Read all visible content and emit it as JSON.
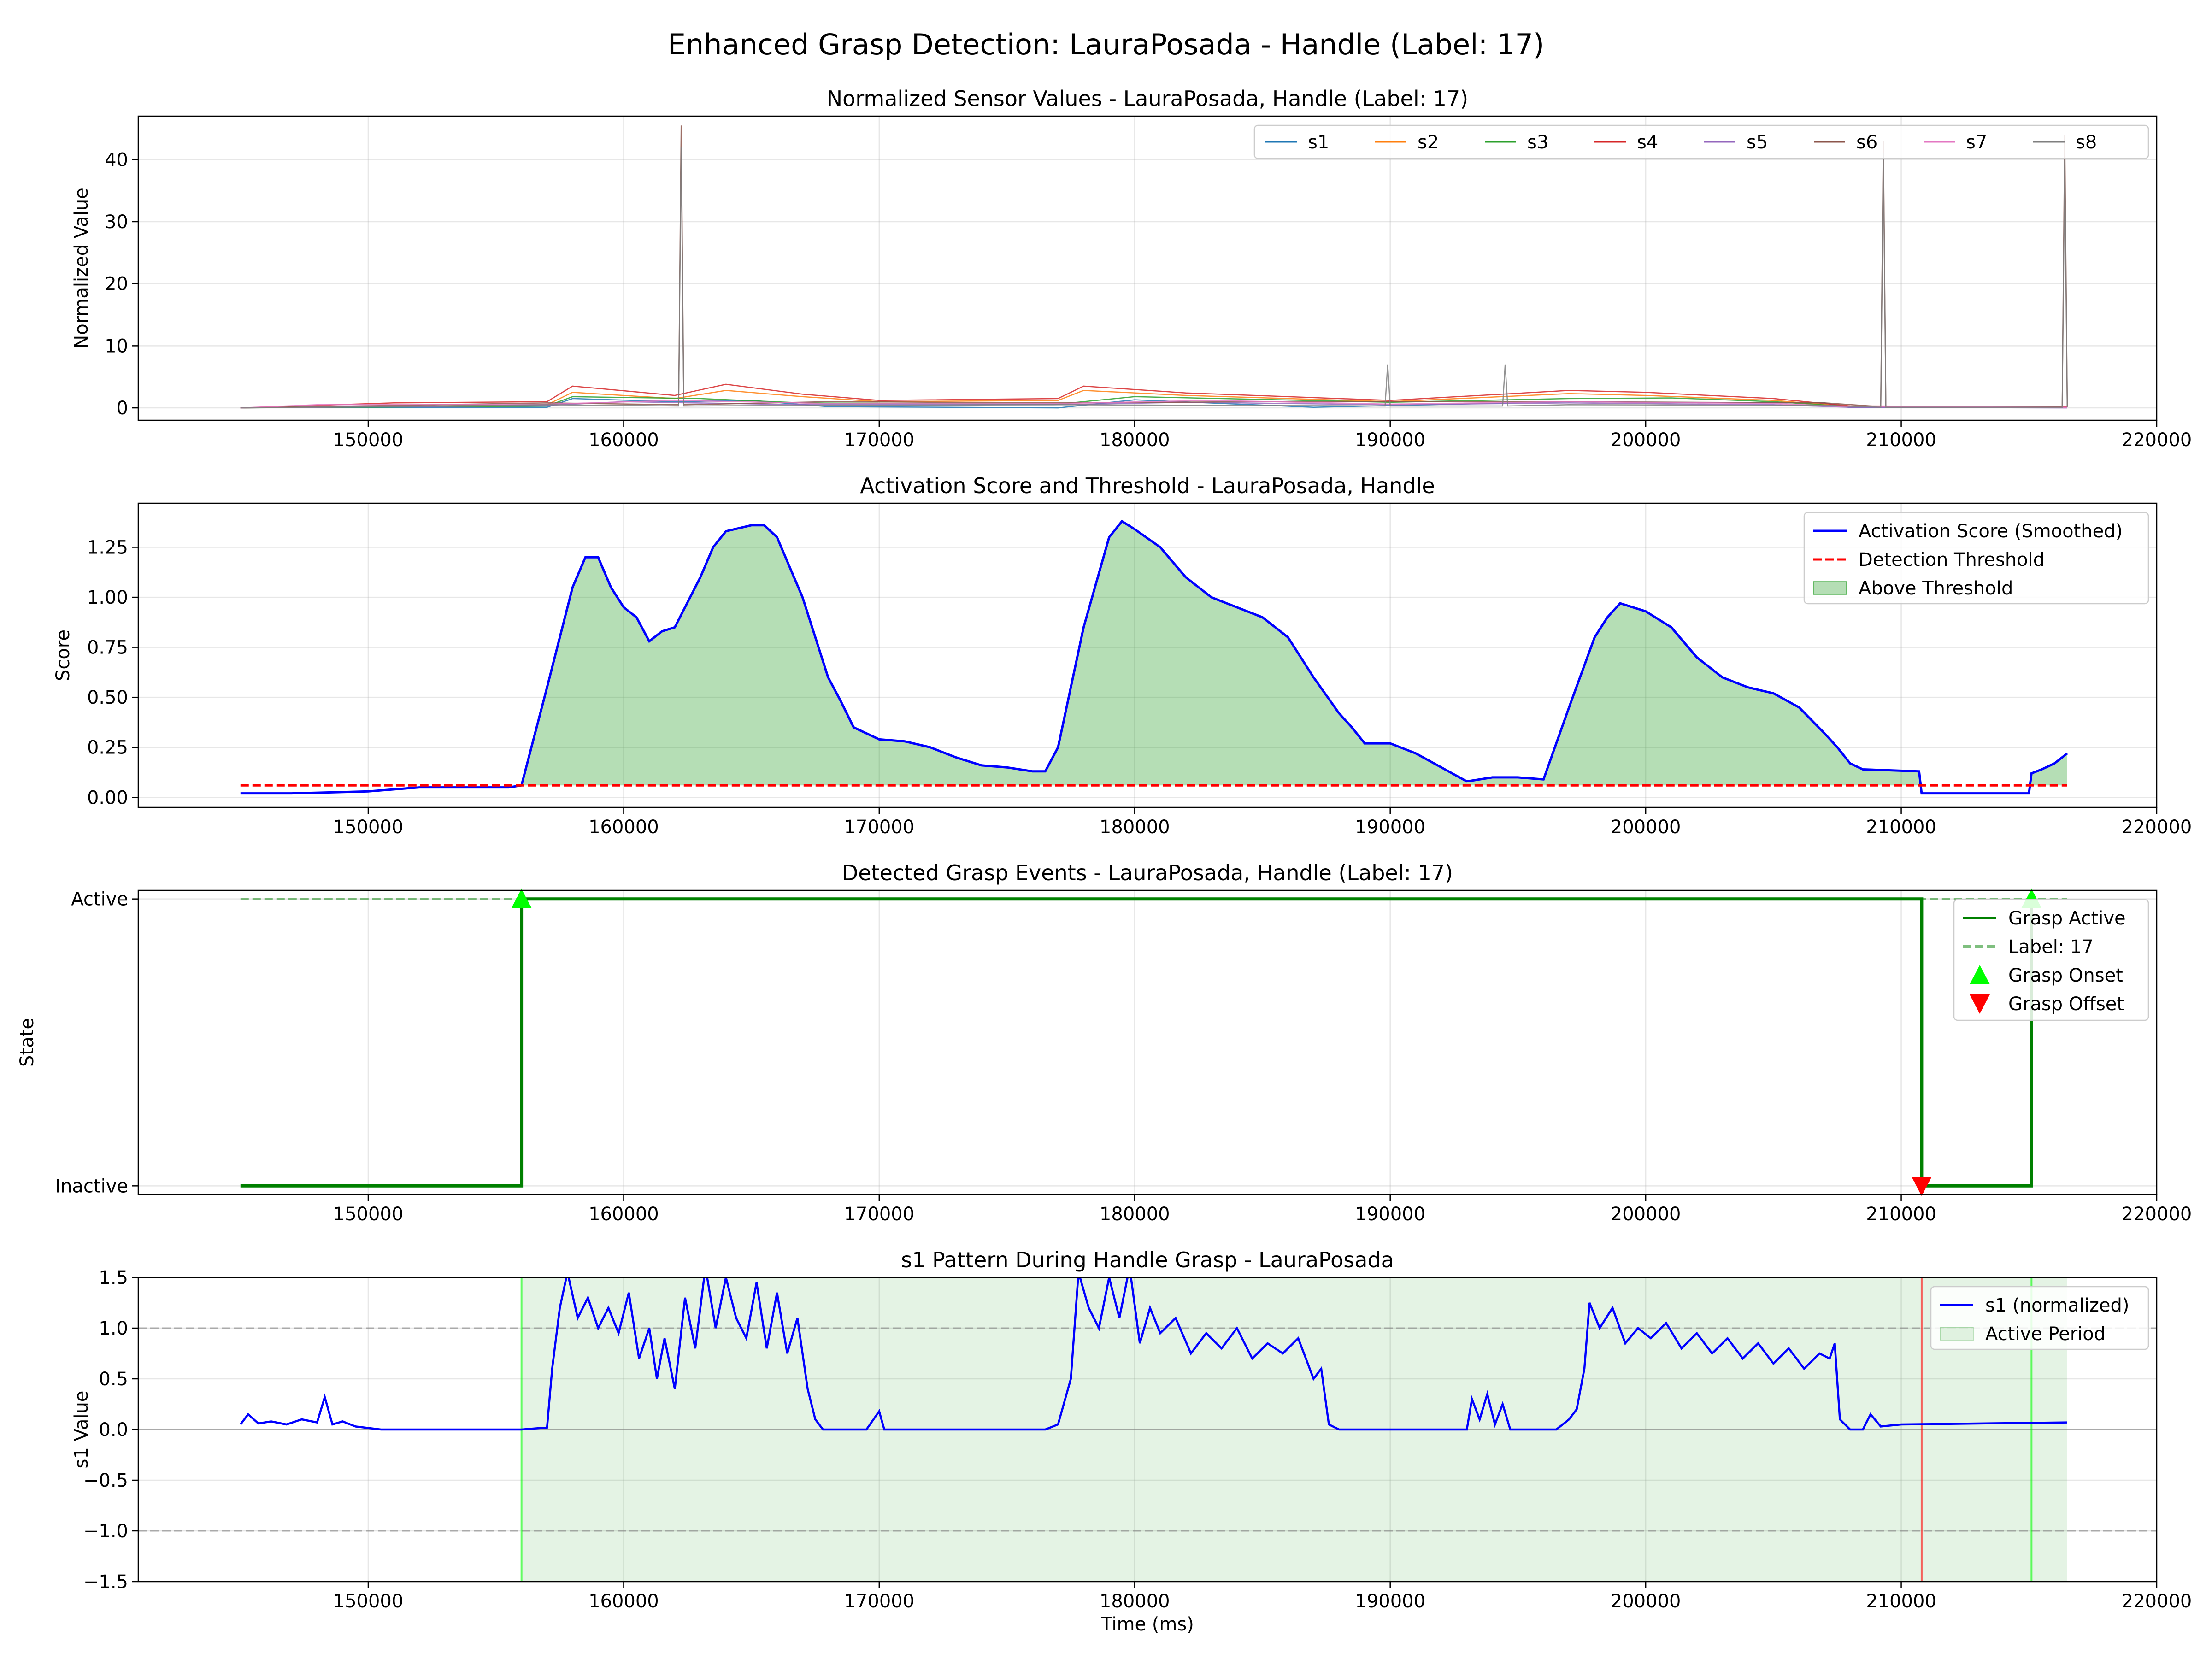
{
  "figure": {
    "title": "Enhanced Grasp Detection: LauraPosada - Handle (Label: 17)"
  },
  "colors": {
    "s1": "#1f77b4",
    "s2": "#ff7f0e",
    "s3": "#2ca02c",
    "s4": "#d62728",
    "s5": "#9467bd",
    "s6": "#8c564b",
    "s7": "#e377c2",
    "s8": "#7f7f7f",
    "score": "#0000ff",
    "threshold": "#ff0000",
    "fill": "#2ca02c",
    "grasp": "#008000",
    "onset": "#00ff00",
    "offset": "#ff0000"
  },
  "chart_data": [
    {
      "type": "line",
      "title": "Normalized Sensor Values - LauraPosada, Handle (Label: 17)",
      "xlabel": "",
      "ylabel": "Normalized Value",
      "xlim": [
        141000,
        220000
      ],
      "ylim": [
        -2,
        47
      ],
      "xticks": [
        150000,
        160000,
        170000,
        180000,
        190000,
        200000,
        210000,
        220000
      ],
      "xtick_labels": [
        "150000",
        "160000",
        "170000",
        "180000",
        "190000",
        "200000",
        "210000",
        "220000"
      ],
      "yticks": [
        0,
        10,
        20,
        30,
        40
      ],
      "ytick_labels": [
        "0",
        "10",
        "20",
        "30",
        "40"
      ],
      "grid": true,
      "legend": "top-right",
      "series": [
        {
          "name": "s1",
          "colorKey": "s1",
          "x": [
            145000,
            157000,
            158000,
            162000,
            165000,
            168000,
            177000,
            180000,
            187000,
            197000,
            200000,
            207000,
            208000,
            216500
          ],
          "y": [
            0.05,
            0.1,
            1.5,
            1.0,
            1.2,
            0.2,
            0.0,
            1.3,
            0.1,
            1.0,
            0.9,
            0.8,
            0.05,
            0.05
          ]
        },
        {
          "name": "s2",
          "colorKey": "s2",
          "x": [
            145000,
            157000,
            158000,
            162000,
            164000,
            167000,
            170000,
            177000,
            178000,
            182000,
            190000,
            197000,
            200000,
            205000,
            208000,
            216500
          ],
          "y": [
            0.0,
            0.5,
            2.5,
            1.5,
            2.8,
            1.8,
            1.0,
            1.2,
            2.8,
            2.0,
            1.0,
            2.3,
            2.0,
            1.2,
            0.2,
            0.1
          ]
        },
        {
          "name": "s3",
          "colorKey": "s3",
          "x": [
            145000,
            157000,
            158000,
            163000,
            167000,
            177000,
            180000,
            190000,
            197000,
            201000,
            205000,
            208000,
            216500
          ],
          "y": [
            0.0,
            0.3,
            1.8,
            1.5,
            0.8,
            0.6,
            1.8,
            0.9,
            1.5,
            1.6,
            1.0,
            0.2,
            0.1
          ]
        },
        {
          "name": "s4",
          "colorKey": "s4",
          "x": [
            145000,
            151000,
            157000,
            158000,
            162000,
            164000,
            167000,
            170000,
            177000,
            178000,
            182000,
            190000,
            197000,
            200000,
            205000,
            208000,
            216500
          ],
          "y": [
            0.0,
            0.8,
            1.0,
            3.5,
            2.0,
            3.8,
            2.2,
            1.2,
            1.5,
            3.5,
            2.4,
            1.2,
            2.8,
            2.5,
            1.5,
            0.3,
            0.2
          ]
        },
        {
          "name": "s5",
          "colorKey": "s5",
          "x": [
            145000,
            157000,
            160000,
            167000,
            177000,
            182000,
            190000,
            197000,
            205000,
            208000,
            216500
          ],
          "y": [
            0.0,
            0.4,
            1.0,
            0.5,
            0.5,
            0.9,
            0.5,
            0.8,
            0.5,
            0.1,
            0.0
          ]
        },
        {
          "name": "s6",
          "colorKey": "s6",
          "x": [
            145000,
            157000,
            162150,
            162250,
            162350,
            168000,
            177000,
            185000,
            197000,
            207000,
            209200,
            209300,
            209400,
            216300,
            216400,
            216500
          ],
          "y": [
            0.0,
            0.8,
            0.5,
            45.5,
            0.5,
            1.0,
            0.8,
            1.0,
            1.0,
            0.8,
            0.2,
            43.0,
            0.2,
            0.2,
            44.0,
            0.2
          ]
        },
        {
          "name": "s7",
          "colorKey": "s7",
          "x": [
            145000,
            148000,
            157000,
            162000,
            168000,
            177000,
            183000,
            190000,
            197000,
            205000,
            208000,
            216500
          ],
          "y": [
            0.0,
            0.5,
            0.6,
            1.2,
            0.7,
            0.7,
            1.2,
            0.6,
            1.0,
            0.7,
            0.2,
            0.1
          ]
        },
        {
          "name": "s8",
          "colorKey": "s8",
          "x": [
            145000,
            157000,
            162150,
            162250,
            162350,
            168000,
            177000,
            189800,
            189900,
            190000,
            194400,
            194500,
            194600,
            197000,
            207000,
            209200,
            209300,
            209400,
            216300,
            216400,
            216500
          ],
          "y": [
            0.0,
            0.5,
            0.3,
            42.0,
            0.3,
            0.4,
            0.5,
            0.3,
            7.0,
            0.3,
            0.3,
            7.0,
            0.3,
            0.5,
            0.4,
            0.1,
            41.0,
            0.1,
            0.1,
            40.0,
            0.1
          ]
        }
      ]
    },
    {
      "type": "line",
      "title": "Activation Score and Threshold - LauraPosada, Handle",
      "xlabel": "",
      "ylabel": "Score",
      "xlim": [
        141000,
        220000
      ],
      "ylim": [
        -0.05,
        1.47
      ],
      "xticks": [
        150000,
        160000,
        170000,
        180000,
        190000,
        200000,
        210000,
        220000
      ],
      "xtick_labels": [
        "150000",
        "160000",
        "170000",
        "180000",
        "190000",
        "200000",
        "210000",
        "220000"
      ],
      "yticks": [
        0.0,
        0.25,
        0.5,
        0.75,
        1.0,
        1.25
      ],
      "ytick_labels": [
        "0.00",
        "0.25",
        "0.50",
        "0.75",
        "1.00",
        "1.25"
      ],
      "grid": true,
      "legend": "top-right",
      "threshold": 0.06,
      "series": [
        {
          "name": "Activation Score (Smoothed)",
          "colorKey": "score",
          "x": [
            145000,
            147000,
            150000,
            152000,
            154000,
            155500,
            156000,
            157000,
            158000,
            158500,
            159000,
            159500,
            160000,
            160500,
            161000,
            161500,
            162000,
            163000,
            163500,
            164000,
            165000,
            165500,
            166000,
            167000,
            168000,
            168500,
            169000,
            170000,
            171000,
            172000,
            173000,
            174000,
            175000,
            176000,
            176500,
            177000,
            178000,
            179000,
            179500,
            180000,
            181000,
            182000,
            183000,
            184000,
            185000,
            186000,
            187000,
            188000,
            188500,
            189000,
            190000,
            191000,
            192000,
            193000,
            194000,
            195000,
            196000,
            197000,
            198000,
            198500,
            199000,
            200000,
            201000,
            202000,
            203000,
            204000,
            205000,
            206000,
            207000,
            207500,
            208000,
            208500,
            210700,
            210800,
            211000,
            213000,
            215000,
            215100,
            215500,
            216000,
            216500
          ],
          "y": [
            0.02,
            0.02,
            0.03,
            0.05,
            0.05,
            0.05,
            0.06,
            0.55,
            1.05,
            1.2,
            1.2,
            1.05,
            0.95,
            0.9,
            0.78,
            0.83,
            0.85,
            1.1,
            1.25,
            1.33,
            1.36,
            1.36,
            1.3,
            1.0,
            0.6,
            0.48,
            0.35,
            0.29,
            0.28,
            0.25,
            0.2,
            0.16,
            0.15,
            0.13,
            0.13,
            0.25,
            0.85,
            1.3,
            1.38,
            1.34,
            1.25,
            1.1,
            1.0,
            0.95,
            0.9,
            0.8,
            0.6,
            0.42,
            0.35,
            0.27,
            0.27,
            0.22,
            0.15,
            0.08,
            0.1,
            0.1,
            0.09,
            0.45,
            0.8,
            0.9,
            0.97,
            0.93,
            0.85,
            0.7,
            0.6,
            0.55,
            0.52,
            0.45,
            0.32,
            0.25,
            0.17,
            0.14,
            0.13,
            0.02,
            0.02,
            0.02,
            0.02,
            0.12,
            0.14,
            0.17,
            0.22
          ]
        },
        {
          "name": "Detection Threshold",
          "colorKey": "threshold",
          "x": [
            145000,
            216500
          ],
          "y": [
            0.06,
            0.06
          ]
        }
      ],
      "fill": {
        "name": "Above Threshold",
        "colorKey": "fill"
      }
    },
    {
      "type": "line",
      "title": "Detected Grasp Events - LauraPosada, Handle (Label: 17)",
      "xlabel": "",
      "ylabel": "State",
      "xlim": [
        141000,
        220000
      ],
      "ylim": [
        -0.03,
        1.03
      ],
      "xticks": [
        150000,
        160000,
        170000,
        180000,
        190000,
        200000,
        210000,
        220000
      ],
      "xtick_labels": [
        "150000",
        "160000",
        "170000",
        "180000",
        "190000",
        "200000",
        "210000",
        "220000"
      ],
      "yticks": [
        0,
        1
      ],
      "ytick_labels": [
        "Inactive",
        "Active"
      ],
      "grid": true,
      "legend": "top-right",
      "series": [
        {
          "name": "Grasp Active",
          "colorKey": "grasp",
          "x": [
            145000,
            156000,
            156000,
            210800,
            210800,
            215100,
            215100
          ],
          "y": [
            0,
            0,
            1,
            1,
            0,
            0,
            1
          ]
        },
        {
          "name": "Label: 17",
          "colorKey": "grasp",
          "x": [
            145000,
            216500
          ],
          "y": [
            1,
            1
          ]
        }
      ],
      "onsets": [
        156000,
        215100
      ],
      "offsets": [
        210800
      ],
      "onset_label": "Grasp Onset",
      "offset_label": "Grasp Offset"
    },
    {
      "type": "line",
      "title": "s1 Pattern During Handle Grasp - LauraPosada",
      "xlabel": "Time (ms)",
      "ylabel": "s1 Value",
      "xlim": [
        141000,
        220000
      ],
      "ylim": [
        -1.5,
        1.5
      ],
      "xticks": [
        150000,
        160000,
        170000,
        180000,
        190000,
        200000,
        210000,
        220000
      ],
      "xtick_labels": [
        "150000",
        "160000",
        "170000",
        "180000",
        "190000",
        "200000",
        "210000",
        "220000"
      ],
      "yticks": [
        -1.5,
        -1.0,
        -0.5,
        0.0,
        0.5,
        1.0,
        1.5
      ],
      "ytick_labels": [
        "−1.5",
        "−1.0",
        "−0.5",
        "0.0",
        "0.5",
        "1.0",
        "1.5"
      ],
      "grid": true,
      "legend": "top-right",
      "series": [
        {
          "name": "s1 (normalized)",
          "colorKey": "score",
          "x": [
            145000,
            145300,
            145700,
            146200,
            146800,
            147400,
            148000,
            148300,
            148600,
            149000,
            149500,
            150500,
            156000,
            157000,
            157200,
            157500,
            157800,
            158200,
            158600,
            159000,
            159400,
            159800,
            160200,
            160600,
            161000,
            161300,
            161600,
            162000,
            162400,
            162800,
            163200,
            163600,
            164000,
            164400,
            164800,
            165200,
            165600,
            166000,
            166400,
            166800,
            167200,
            167500,
            167800,
            168500,
            169500,
            170000,
            170200,
            171000,
            173000,
            176500,
            177000,
            177500,
            177800,
            178200,
            178600,
            179000,
            179400,
            179800,
            180200,
            180600,
            181000,
            181600,
            182200,
            182800,
            183400,
            184000,
            184600,
            185200,
            185800,
            186400,
            187000,
            187300,
            187600,
            188000,
            190000,
            193000,
            193200,
            193500,
            193800,
            194100,
            194400,
            194700,
            195000,
            196500,
            197000,
            197300,
            197600,
            197800,
            198200,
            198700,
            199200,
            199700,
            200200,
            200800,
            201400,
            202000,
            202600,
            203200,
            203800,
            204400,
            205000,
            205600,
            206200,
            206800,
            207200,
            207400,
            207600,
            208000,
            208500,
            208800,
            209200,
            210000,
            216500
          ],
          "y": [
            0.05,
            0.15,
            0.06,
            0.08,
            0.05,
            0.1,
            0.07,
            0.32,
            0.05,
            0.08,
            0.03,
            0.0,
            0.0,
            0.02,
            0.6,
            1.2,
            1.55,
            1.1,
            1.3,
            1.0,
            1.2,
            0.95,
            1.35,
            0.7,
            1.0,
            0.5,
            0.9,
            0.4,
            1.3,
            0.8,
            1.6,
            1.0,
            1.5,
            1.1,
            0.9,
            1.45,
            0.8,
            1.35,
            0.75,
            1.1,
            0.4,
            0.1,
            0.0,
            0.0,
            0.0,
            0.18,
            0.0,
            0.0,
            0.0,
            0.0,
            0.05,
            0.5,
            1.55,
            1.2,
            1.0,
            1.5,
            1.1,
            1.6,
            0.85,
            1.2,
            0.95,
            1.1,
            0.75,
            0.95,
            0.8,
            1.0,
            0.7,
            0.85,
            0.75,
            0.9,
            0.5,
            0.6,
            0.05,
            0.0,
            0.0,
            0.0,
            0.3,
            0.1,
            0.35,
            0.05,
            0.25,
            0.0,
            0.0,
            0.0,
            0.1,
            0.2,
            0.6,
            1.25,
            1.0,
            1.2,
            0.85,
            1.0,
            0.9,
            1.05,
            0.8,
            0.95,
            0.75,
            0.9,
            0.7,
            0.85,
            0.65,
            0.8,
            0.6,
            0.75,
            0.7,
            0.85,
            0.1,
            0.0,
            0.0,
            0.15,
            0.03,
            0.05,
            0.07
          ]
        }
      ],
      "active_period": {
        "name": "Active Period",
        "x": [
          156000,
          216500
        ]
      },
      "event_lines": [
        {
          "x": 156000,
          "colorKey": "onset"
        },
        {
          "x": 210800,
          "colorKey": "offset"
        },
        {
          "x": 215100,
          "colorKey": "onset"
        }
      ],
      "ref_lines": [
        1.0,
        -1.0,
        0.0
      ]
    }
  ]
}
